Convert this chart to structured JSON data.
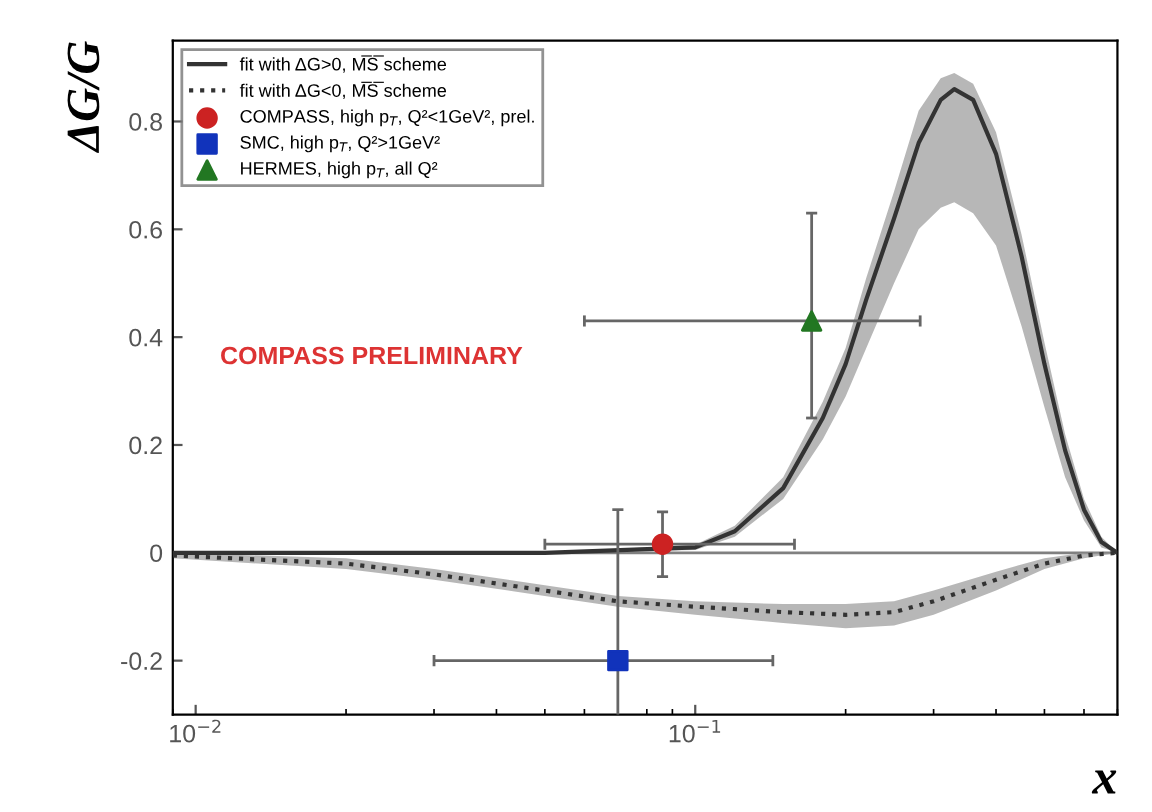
{
  "chart_data": {
    "type": "line",
    "xlabel": "x",
    "ylabel": "ΔG/G",
    "log": "x",
    "xlim": [
      0.009,
      0.7
    ],
    "ylim": [
      -0.3,
      0.95
    ],
    "xticks": [
      {
        "value": 0.01,
        "label": "10$^{−2}$"
      },
      {
        "value": 0.1,
        "label": "10$^{−1}$"
      }
    ],
    "yticks": [
      -0.2,
      0,
      0.2,
      0.4,
      0.6,
      0.8
    ],
    "grid": false,
    "legend": "top left",
    "ref_lines": [
      {
        "axis": "y",
        "value": 0,
        "color": "#808080"
      }
    ],
    "annotations": [
      "COMPASS PRELIMINARY"
    ],
    "series": [
      {
        "name": "fit with ΔG>0, M̅S̅ scheme",
        "color": "#333333",
        "line_style": "solid",
        "marker": "none",
        "x": [
          0.009,
          0.05,
          0.1,
          0.12,
          0.15,
          0.18,
          0.2,
          0.22,
          0.25,
          0.28,
          0.31,
          0.33,
          0.36,
          0.4,
          0.45,
          0.5,
          0.55,
          0.6,
          0.65,
          0.7
        ],
        "values": [
          0,
          0,
          0.01,
          0.04,
          0.12,
          0.25,
          0.35,
          0.47,
          0.62,
          0.76,
          0.84,
          0.86,
          0.84,
          0.74,
          0.55,
          0.35,
          0.19,
          0.08,
          0.02,
          0
        ],
        "lower": [
          0,
          0,
          0.005,
          0.03,
          0.1,
          0.21,
          0.29,
          0.38,
          0.5,
          0.6,
          0.64,
          0.65,
          0.63,
          0.57,
          0.42,
          0.27,
          0.14,
          0.06,
          0.01,
          0
        ],
        "upper": [
          0,
          0,
          0.015,
          0.05,
          0.14,
          0.28,
          0.38,
          0.51,
          0.67,
          0.82,
          0.88,
          0.89,
          0.87,
          0.78,
          0.59,
          0.39,
          0.22,
          0.1,
          0.03,
          0
        ]
      },
      {
        "name": "fit with ΔG<0, M̅S̅ scheme",
        "color": "#333333",
        "line_style": "dotted",
        "marker": "none",
        "x": [
          0.009,
          0.02,
          0.03,
          0.05,
          0.07,
          0.1,
          0.15,
          0.2,
          0.25,
          0.3,
          0.4,
          0.5,
          0.6,
          0.7
        ],
        "values": [
          -0.005,
          -0.02,
          -0.04,
          -0.07,
          -0.09,
          -0.1,
          -0.11,
          -0.115,
          -0.11,
          -0.09,
          -0.05,
          -0.02,
          -0.005,
          0
        ],
        "lower": [
          -0.01,
          -0.03,
          -0.05,
          -0.08,
          -0.1,
          -0.115,
          -0.13,
          -0.14,
          -0.135,
          -0.115,
          -0.07,
          -0.03,
          -0.01,
          0
        ],
        "upper": [
          0,
          -0.01,
          -0.03,
          -0.06,
          -0.08,
          -0.09,
          -0.095,
          -0.095,
          -0.09,
          -0.07,
          -0.035,
          -0.01,
          0,
          0
        ]
      },
      {
        "name": "COMPASS, high p$_{T}$, Q²<1GeV², prel.",
        "type": "scatter",
        "color": "#cc2222",
        "marker": "circle",
        "x": [
          0.086
        ],
        "values": [
          0.016
        ],
        "errors": [
          0.06
        ],
        "xerrors": [
          [
            0.05,
            0.158
          ]
        ]
      },
      {
        "name": "SMC, high p$_{T}$, Q²>1GeV²",
        "type": "scatter",
        "color": "#1133bb",
        "marker": "square",
        "x": [
          0.07
        ],
        "values": [
          -0.2
        ],
        "errors": [
          0.28
        ],
        "xerrors": [
          [
            0.03,
            0.143
          ]
        ]
      },
      {
        "name": "HERMES, high p$_{T}$, all Q²",
        "type": "scatter",
        "color": "#227722",
        "marker": "triangle",
        "x": [
          0.171
        ],
        "values": [
          0.43
        ],
        "errors": [
          [
            0.25,
            0.63
          ]
        ],
        "xerrors": [
          [
            0.06,
            0.282
          ]
        ]
      }
    ]
  }
}
